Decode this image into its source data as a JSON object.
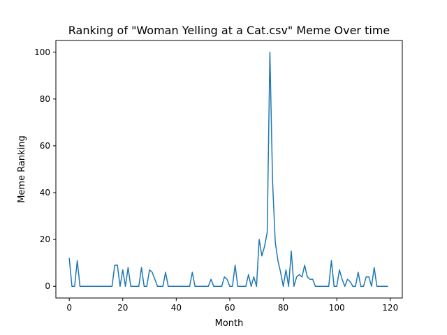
{
  "chart_data": {
    "type": "line",
    "title": "Ranking of \"Woman Yelling at a Cat.csv\" Meme Over time",
    "xlabel": "Month",
    "ylabel": "Meme Ranking",
    "xlim": [
      -5,
      124.5
    ],
    "ylim": [
      -5,
      105
    ],
    "xticks": [
      0,
      20,
      40,
      60,
      80,
      100,
      120
    ],
    "yticks": [
      0,
      20,
      40,
      60,
      80,
      100
    ],
    "grid": false,
    "line_color": "#1f77b4",
    "series": [
      {
        "x": [
          0,
          1,
          2,
          3,
          4,
          5,
          6,
          7,
          8,
          9,
          10,
          11,
          12,
          13,
          14,
          15,
          16,
          17,
          18,
          19,
          20,
          21,
          22,
          23,
          24,
          25,
          26,
          27,
          28,
          29,
          30,
          31,
          32,
          33,
          34,
          35,
          36,
          37,
          38,
          39,
          40,
          41,
          42,
          43,
          44,
          45,
          46,
          47,
          48,
          49,
          50,
          51,
          52,
          53,
          54,
          55,
          56,
          57,
          58,
          59,
          60,
          61,
          62,
          63,
          64,
          65,
          66,
          67,
          68,
          69,
          70,
          71,
          72,
          73,
          74,
          75,
          76,
          77,
          78,
          79,
          80,
          81,
          82,
          83,
          84,
          85,
          86,
          87,
          88,
          89,
          90,
          91,
          92,
          93,
          94,
          95,
          96,
          97,
          98,
          99,
          100,
          101,
          102,
          103,
          104,
          105,
          106,
          107,
          108,
          109,
          110,
          111,
          112,
          113,
          114,
          115,
          116,
          117,
          118,
          119
        ],
        "values": [
          12,
          0,
          0,
          11,
          0,
          0,
          0,
          0,
          0,
          0,
          0,
          0,
          0,
          0,
          0,
          0,
          0,
          9,
          9,
          0,
          7,
          0,
          8,
          0,
          0,
          0,
          0,
          8,
          0,
          0,
          7,
          6,
          3,
          0,
          0,
          0,
          6,
          0,
          0,
          0,
          0,
          0,
          0,
          0,
          0,
          0,
          6,
          0,
          0,
          0,
          0,
          0,
          0,
          3,
          0,
          0,
          0,
          0,
          4,
          3,
          0,
          0,
          9,
          0,
          0,
          0,
          0,
          5,
          0,
          4,
          0,
          20,
          13,
          17,
          23,
          100,
          45,
          19,
          11,
          6,
          0,
          7,
          0,
          15,
          0,
          4,
          5,
          4,
          9,
          4,
          3,
          3,
          0,
          0,
          0,
          0,
          0,
          0,
          11,
          0,
          0,
          7,
          3,
          0,
          3,
          2,
          0,
          0,
          6,
          0,
          0,
          4,
          4,
          0,
          8,
          0,
          0,
          0,
          0,
          0
        ]
      }
    ]
  }
}
